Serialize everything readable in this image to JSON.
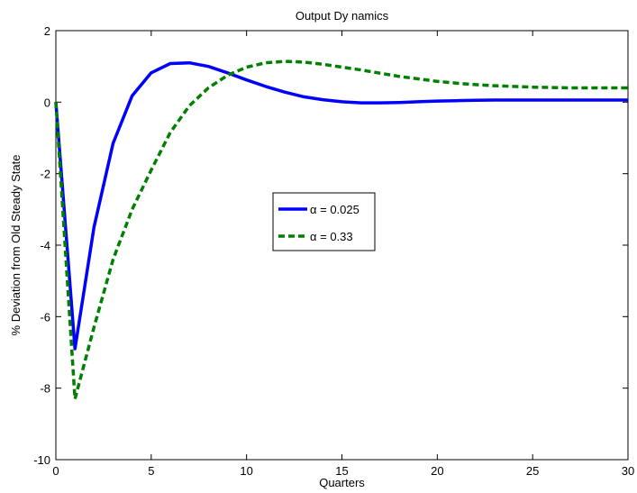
{
  "chart_data": {
    "type": "line",
    "title": "Output Dy namics",
    "xlabel": "Quarters",
    "ylabel": "% Deviation from Old Steady State",
    "xlim": [
      0,
      30
    ],
    "ylim": [
      -10,
      2
    ],
    "xticks": [
      0,
      5,
      10,
      15,
      20,
      25,
      30
    ],
    "yticks": [
      -10,
      -8,
      -6,
      -4,
      -2,
      0,
      2
    ],
    "grid": false,
    "legend_position": "center",
    "series": [
      {
        "name": "α = 0.025",
        "color": "#0000ff",
        "style": "solid",
        "x": [
          0,
          1,
          2,
          3,
          4,
          5,
          6,
          7,
          8,
          9,
          10,
          11,
          12,
          13,
          14,
          15,
          16,
          17,
          18,
          19,
          20,
          21,
          22,
          23,
          24,
          25,
          26,
          27,
          28,
          29,
          30
        ],
        "y": [
          0,
          -6.9,
          -3.5,
          -1.15,
          0.18,
          0.82,
          1.08,
          1.1,
          1.0,
          0.82,
          0.62,
          0.44,
          0.28,
          0.15,
          0.07,
          0.01,
          -0.02,
          -0.02,
          -0.01,
          0.01,
          0.03,
          0.04,
          0.05,
          0.06,
          0.06,
          0.06,
          0.06,
          0.06,
          0.06,
          0.06,
          0.06
        ]
      },
      {
        "name": "α = 0.33",
        "color": "#008000",
        "style": "dashed",
        "x": [
          0,
          1,
          2,
          3,
          4,
          5,
          6,
          7,
          8,
          9,
          10,
          11,
          12,
          13,
          14,
          15,
          16,
          17,
          18,
          19,
          20,
          21,
          22,
          23,
          24,
          25,
          26,
          27,
          28,
          29,
          30
        ],
        "y": [
          0,
          -8.3,
          -6.3,
          -4.4,
          -3.0,
          -1.9,
          -0.85,
          -0.1,
          0.4,
          0.75,
          0.98,
          1.1,
          1.14,
          1.12,
          1.06,
          0.98,
          0.9,
          0.81,
          0.72,
          0.65,
          0.58,
          0.53,
          0.49,
          0.46,
          0.44,
          0.42,
          0.41,
          0.4,
          0.4,
          0.4,
          0.4
        ]
      }
    ]
  }
}
